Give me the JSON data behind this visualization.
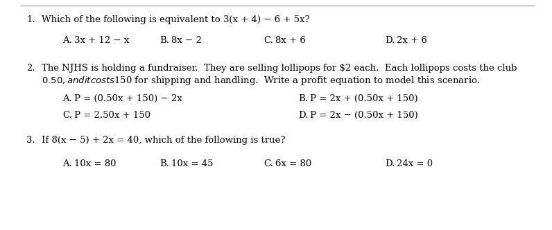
{
  "background_color": "#ffffff",
  "border_color": "#aaaaaa",
  "text_color": "#000000",
  "font_family": "DejaVu Serif",
  "fontsize": 9.5,
  "q1_num": "1.",
  "q1_text": "Which of the following is equivalent to 3(x + 4) − 6 + 5x?",
  "q1_ans": [
    [
      "A.",
      "3x + 12 − x"
    ],
    [
      "B.",
      "8x − 2"
    ],
    [
      "C.",
      "8x + 6"
    ],
    [
      "D.",
      "2x + 6"
    ]
  ],
  "q2_num": "2.",
  "q2_line1": "The NJHS is holding a fundraiser.  They are selling lollipops for $2 each.  Each lollipops costs the club",
  "q2_line2": "$0.50, and it costs $150 for shipping and handling.  Write a profit equation to model this scenario.",
  "q2_ans": [
    [
      "A.",
      "P = (0.50x + 150) − 2x"
    ],
    [
      "B.",
      "P = 2x + (0.50x + 150)"
    ],
    [
      "C.",
      "P = 2.50x + 150"
    ],
    [
      "D.",
      "P = 2x − (0.50x + 150)"
    ]
  ],
  "q3_num": "3.",
  "q3_text": "If 8(x − 5) + 2x = 40, which of the following is true?",
  "q3_ans": [
    [
      "A.",
      "10x = 80"
    ],
    [
      "B.",
      "10x = 45"
    ],
    [
      "C.",
      "6x = 80"
    ],
    [
      "D.",
      "24x = 0"
    ]
  ]
}
